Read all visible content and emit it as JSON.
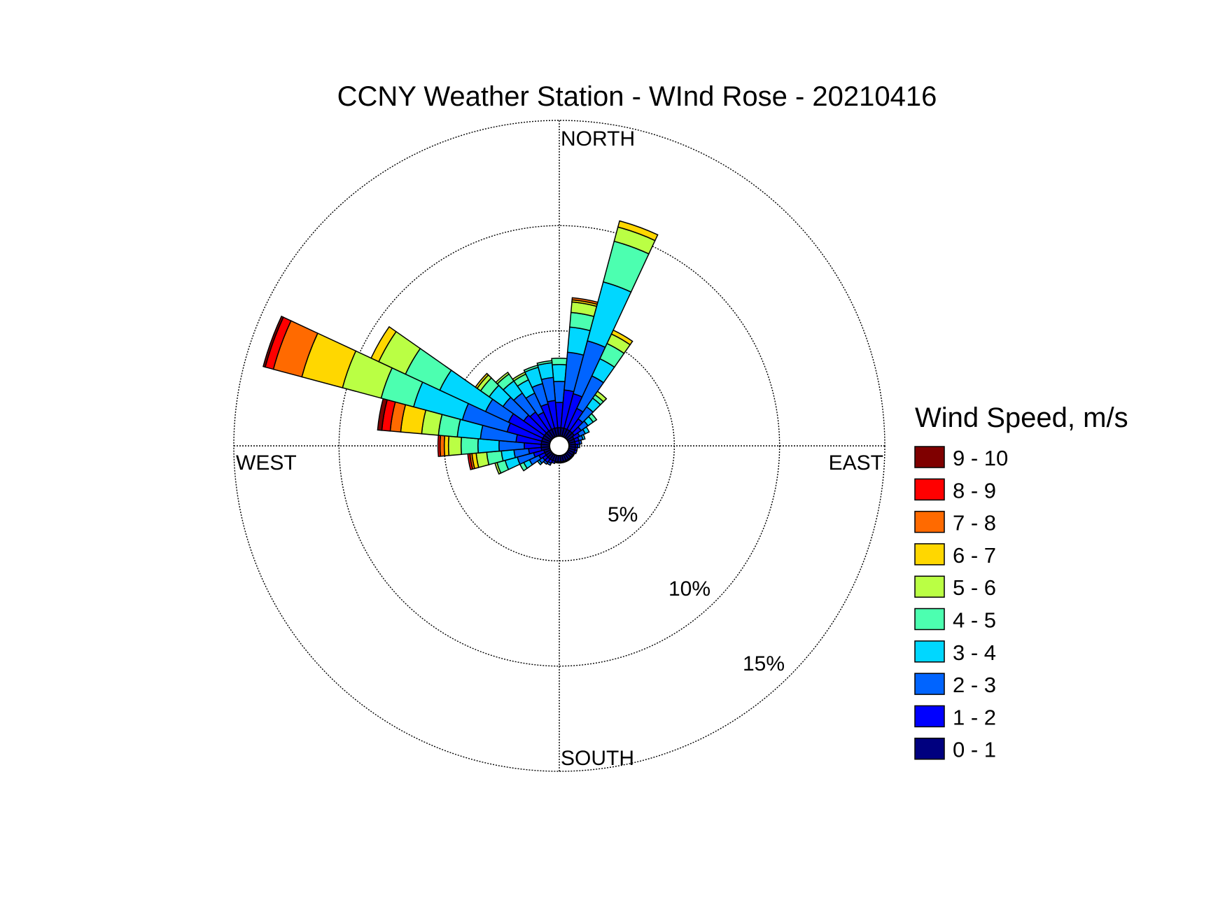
{
  "chart_data": {
    "type": "wind-rose",
    "title": "CCNY Weather Station - WInd Rose - 20210416",
    "direction_labels": {
      "north": "NORTH",
      "east": "EAST",
      "south": "SOUTH",
      "west": "WEST"
    },
    "radial_tick_labels": [
      "5%",
      "10%",
      "15%"
    ],
    "radial_ticks": [
      5,
      10,
      15
    ],
    "rmax": 15,
    "sector_width_deg": 10,
    "legend": {
      "title": "Wind Speed, m/s",
      "placement": "right",
      "bins": [
        "0 - 1",
        "1 - 2",
        "2 - 3",
        "3 - 4",
        "4 - 5",
        "5 - 6",
        "6 - 7",
        "7 - 8",
        "8 - 9",
        "9 - 10"
      ],
      "colors": [
        "#00007F",
        "#0000FF",
        "#0064FF",
        "#00D7FF",
        "#4CFFB0",
        "#BAFF44",
        "#FFD700",
        "#FF6A00",
        "#FF0000",
        "#7F0000"
      ]
    },
    "sectors": [
      {
        "direction": 0,
        "cumulative": [
          0.4,
          1.6,
          2.6,
          3.4,
          3.7
        ]
      },
      {
        "direction": 10,
        "cumulative": [
          0.4,
          2.2,
          4.0,
          5.2,
          5.9,
          6.4,
          6.5,
          6.6
        ]
      },
      {
        "direction": 20,
        "cumulative": [
          0.4,
          2.1,
          4.7,
          7.6,
          9.6,
          10.3,
          10.6
        ]
      },
      {
        "direction": 30,
        "cumulative": [
          0.4,
          1.5,
          3.2,
          4.1,
          4.9,
          5.4,
          5.6
        ]
      },
      {
        "direction": 40,
        "cumulative": [
          0.4,
          1.1,
          1.8,
          2.3,
          2.5,
          2.7
        ]
      },
      {
        "direction": 50,
        "cumulative": [
          0.4,
          0.8,
          1.2,
          1.5,
          1.7
        ]
      },
      {
        "direction": 60,
        "cumulative": [
          0.3,
          0.6,
          0.9,
          1.1
        ]
      },
      {
        "direction": 70,
        "cumulative": [
          0.3,
          0.5,
          0.7,
          0.8
        ]
      },
      {
        "direction": 80,
        "cumulative": [
          0.3,
          0.5,
          0.6
        ]
      },
      {
        "direction": 90,
        "cumulative": [
          0.3,
          0.4,
          0.5
        ]
      },
      {
        "direction": 100,
        "cumulative": [
          0.3,
          0.4
        ]
      },
      {
        "direction": 110,
        "cumulative": [
          0.3,
          0.4
        ]
      },
      {
        "direction": 120,
        "cumulative": [
          0.3,
          0.35
        ]
      },
      {
        "direction": 130,
        "cumulative": [
          0.3,
          0.35
        ]
      },
      {
        "direction": 140,
        "cumulative": [
          0.3,
          0.35
        ]
      },
      {
        "direction": 150,
        "cumulative": [
          0.3,
          0.35
        ]
      },
      {
        "direction": 160,
        "cumulative": [
          0.3,
          0.35
        ]
      },
      {
        "direction": 170,
        "cumulative": [
          0.3,
          0.35
        ]
      },
      {
        "direction": 180,
        "cumulative": [
          0.3,
          0.35
        ]
      },
      {
        "direction": 190,
        "cumulative": [
          0.3,
          0.35
        ]
      },
      {
        "direction": 200,
        "cumulative": [
          0.3,
          0.4
        ]
      },
      {
        "direction": 210,
        "cumulative": [
          0.3,
          0.45,
          0.55
        ]
      },
      {
        "direction": 220,
        "cumulative": [
          0.3,
          0.5,
          0.6
        ]
      },
      {
        "direction": 230,
        "cumulative": [
          0.3,
          0.5,
          0.7,
          0.8
        ]
      },
      {
        "direction": 240,
        "cumulative": [
          0.3,
          0.6,
          1.1,
          1.4,
          1.6
        ]
      },
      {
        "direction": 250,
        "cumulative": [
          0.3,
          0.8,
          1.6,
          2.2,
          2.6,
          2.7
        ]
      },
      {
        "direction": 260,
        "cumulative": [
          0.4,
          1.0,
          1.7,
          2.3,
          3.0,
          3.5,
          3.7,
          3.8,
          3.9
        ]
      },
      {
        "direction": 270,
        "cumulative": [
          0.4,
          1.2,
          2.4,
          3.4,
          4.2,
          4.8,
          5.0,
          5.2,
          5.3
        ]
      },
      {
        "direction": 280,
        "cumulative": [
          0.4,
          1.6,
          3.3,
          4.4,
          5.3,
          6.1,
          7.1,
          7.6,
          8.0,
          8.2
        ]
      },
      {
        "direction": 290,
        "cumulative": [
          0.4,
          2.1,
          4.3,
          6.7,
          8.3,
          10.2,
          12.2,
          13.6,
          14.0,
          14.1
        ]
      },
      {
        "direction": 300,
        "cumulative": [
          0.4,
          2.2,
          3.4,
          5.8,
          7.6,
          9.0,
          9.4
        ]
      },
      {
        "direction": 310,
        "cumulative": [
          0.4,
          1.6,
          2.8,
          3.6,
          4.1,
          4.3,
          4.4
        ]
      },
      {
        "direction": 320,
        "cumulative": [
          0.4,
          1.5,
          2.6,
          3.3,
          3.7,
          3.8
        ]
      },
      {
        "direction": 330,
        "cumulative": [
          0.4,
          1.3,
          2.3,
          3.0,
          3.3,
          3.4
        ]
      },
      {
        "direction": 340,
        "cumulative": [
          0.4,
          1.6,
          2.6,
          3.4,
          3.5
        ]
      },
      {
        "direction": 350,
        "cumulative": [
          0.4,
          1.7,
          2.8,
          3.5,
          3.6
        ]
      }
    ]
  }
}
